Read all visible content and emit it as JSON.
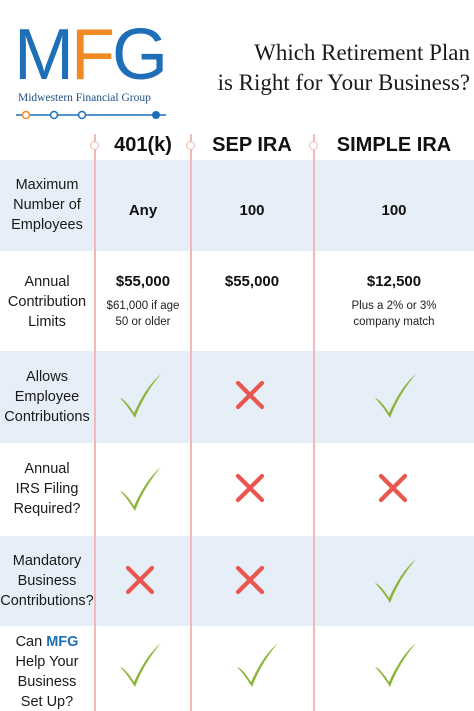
{
  "logo": {
    "letters": [
      "M",
      "F",
      "G"
    ],
    "subtitle": "Midwestern Financial Group"
  },
  "title": {
    "line1": "Which Retirement Plan",
    "line2": "is Right for Your Business?"
  },
  "columns": [
    "401(k)",
    "SEP IRA",
    "SIMPLE IRA"
  ],
  "rows": [
    {
      "label": [
        "Maximum",
        "Number of",
        "Employees"
      ],
      "cells": [
        {
          "main": "Any"
        },
        {
          "main": "100"
        },
        {
          "main": "100"
        }
      ]
    },
    {
      "label": [
        "Annual",
        "Contribution",
        "Limits"
      ],
      "cells": [
        {
          "main": "$55,000",
          "sub": [
            "$61,000 if age",
            "50 or older"
          ]
        },
        {
          "main": "$55,000"
        },
        {
          "main": "$12,500",
          "sub": [
            "Plus a 2% or 3%",
            "company match"
          ]
        }
      ]
    },
    {
      "label": [
        "Allows",
        "Employee",
        "Contributions"
      ],
      "marks": [
        "check-icon",
        "cross-icon",
        "check-icon"
      ]
    },
    {
      "label": [
        "Annual",
        "IRS Filing",
        "Required?"
      ],
      "marks": [
        "check-icon",
        "cross-icon",
        "cross-icon"
      ]
    },
    {
      "label": [
        "Mandatory",
        "Business",
        "Contributions?"
      ],
      "marks": [
        "cross-icon",
        "cross-icon",
        "check-icon"
      ]
    },
    {
      "label_prefix": "Can ",
      "label_brand": "MFG",
      "label": [
        "Help Your",
        "Business",
        "Set Up?"
      ],
      "marks": [
        "check-icon",
        "check-icon",
        "check-icon"
      ]
    }
  ],
  "colors": {
    "brand_blue": "#1e6fb8",
    "brand_orange": "#f08a24",
    "check_green": "#8bb53a",
    "cross_red": "#e8564f",
    "band_blue": "#e6eef7",
    "divider_pink": "#f2b9b9"
  }
}
